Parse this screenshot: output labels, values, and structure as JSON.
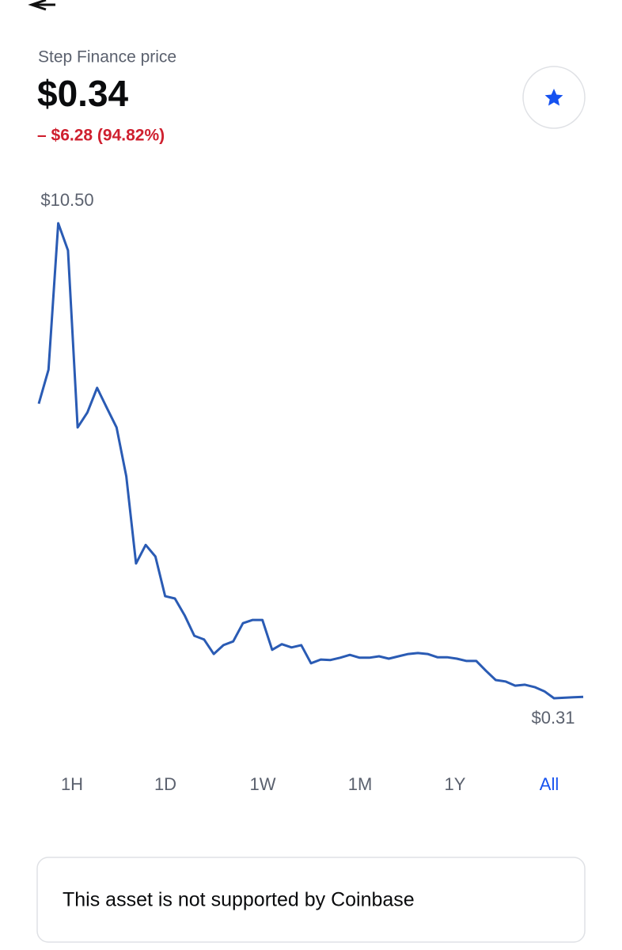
{
  "header": {
    "title": "Step Finance price",
    "price": "$0.34",
    "change": "– $6.28 (94.82%)"
  },
  "chart_data": {
    "type": "line",
    "color": "#2a5bb4",
    "values": [
      6.63,
      7.36,
      10.5,
      9.92,
      6.12,
      6.44,
      6.97,
      6.54,
      6.12,
      5.07,
      3.2,
      3.6,
      3.35,
      2.5,
      2.45,
      2.09,
      1.65,
      1.57,
      1.26,
      1.45,
      1.53,
      1.92,
      1.99,
      1.99,
      1.35,
      1.47,
      1.4,
      1.45,
      1.06,
      1.14,
      1.13,
      1.18,
      1.24,
      1.18,
      1.18,
      1.21,
      1.16,
      1.21,
      1.26,
      1.28,
      1.26,
      1.19,
      1.19,
      1.16,
      1.11,
      1.11,
      0.9,
      0.7,
      0.67,
      0.58,
      0.6,
      0.55,
      0.46,
      0.31,
      0.32,
      0.33,
      0.34
    ],
    "ylim": [
      0.31,
      10.5
    ],
    "annotations": [
      {
        "value": 10.5,
        "label": "$10.50"
      },
      {
        "value": 0.31,
        "label": "$0.31"
      }
    ]
  },
  "range_tabs": {
    "items": [
      "1H",
      "1D",
      "1W",
      "1M",
      "1Y",
      "All"
    ],
    "selected_index": 5,
    "selected_color": "#1652f0"
  },
  "notice": "This asset is not supported by Coinbase"
}
